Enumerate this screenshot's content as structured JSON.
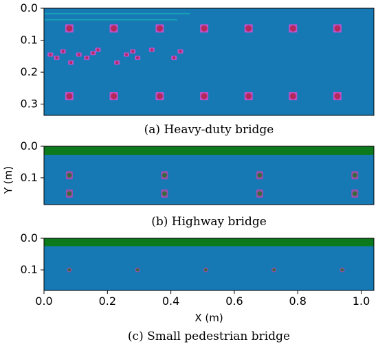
{
  "colors": {
    "concrete": "#1679b4",
    "pavement": "#0c7a1c",
    "rebar": "#b5295a",
    "rebar_halo": "#c050c8",
    "bolt": "#3a6a3a",
    "bolt_halo": "#9a4fb0",
    "crack": "#17a0b8"
  },
  "chart_data": [
    {
      "type": "scatter",
      "caption": "(a) Heavy-duty bridge",
      "xlim": [
        0.0,
        1.04
      ],
      "ylim": [
        0.0,
        0.335
      ],
      "y_inverted": true,
      "yticks": [
        "0.0",
        "0.1",
        "0.2",
        "0.3"
      ],
      "ytick_values": [
        0.0,
        0.1,
        0.2,
        0.3
      ],
      "series": [
        {
          "marker": "rebar",
          "x": [
            0.08,
            0.22,
            0.365,
            0.505,
            0.645,
            0.785,
            0.925,
            0.08,
            0.22,
            0.365,
            0.505,
            0.645,
            0.785,
            0.925
          ],
          "y": [
            0.063,
            0.063,
            0.063,
            0.063,
            0.063,
            0.063,
            0.063,
            0.275,
            0.275,
            0.275,
            0.275,
            0.275,
            0.275,
            0.275
          ]
        },
        {
          "marker": "small",
          "x": [
            0.02,
            0.04,
            0.06,
            0.085,
            0.11,
            0.135,
            0.155,
            0.17,
            0.23,
            0.26,
            0.28,
            0.295,
            0.34,
            0.41,
            0.43
          ],
          "y": [
            0.145,
            0.155,
            0.135,
            0.17,
            0.145,
            0.155,
            0.14,
            0.13,
            0.17,
            0.145,
            0.135,
            0.155,
            0.13,
            0.155,
            0.135
          ]
        }
      ],
      "cracks": [
        {
          "x": [
            0.0,
            0.46
          ],
          "y": [
            0.017,
            0.017
          ]
        },
        {
          "x": [
            0.0,
            0.42
          ],
          "y": [
            0.036,
            0.036
          ]
        }
      ]
    },
    {
      "type": "scatter",
      "caption": "(b) Highway bridge",
      "xlim": [
        0.0,
        1.04
      ],
      "ylim": [
        0.0,
        0.185
      ],
      "y_inverted": true,
      "yticks": [
        "0.0",
        "0.1"
      ],
      "ytick_values": [
        0.0,
        0.1
      ],
      "pavement": [
        0.0,
        0.028
      ],
      "series": [
        {
          "marker": "bolt",
          "x": [
            0.08,
            0.38,
            0.68,
            0.98,
            0.08,
            0.38,
            0.68,
            0.98
          ],
          "y": [
            0.092,
            0.092,
            0.092,
            0.092,
            0.15,
            0.15,
            0.15,
            0.15
          ]
        }
      ]
    },
    {
      "type": "scatter",
      "caption": "(c) Small pedestrian bridge",
      "xlim": [
        0.0,
        1.04
      ],
      "ylim": [
        0.0,
        0.165
      ],
      "y_inverted": true,
      "yticks": [
        "0.0",
        "0.1"
      ],
      "ytick_values": [
        0.0,
        0.1
      ],
      "pavement": [
        0.0,
        0.025
      ],
      "xticks": [
        "0.0",
        "0.2",
        "0.4",
        "0.6",
        "0.8",
        "1.0"
      ],
      "xtick_values": [
        0.0,
        0.2,
        0.4,
        0.6,
        0.8,
        1.0
      ],
      "series": [
        {
          "marker": "tiny",
          "x": [
            0.08,
            0.295,
            0.51,
            0.725,
            0.94
          ],
          "y": [
            0.1,
            0.1,
            0.1,
            0.1,
            0.1
          ]
        }
      ]
    }
  ],
  "axes": {
    "ylabel": "Y (m)",
    "xlabel": "X (m)"
  }
}
